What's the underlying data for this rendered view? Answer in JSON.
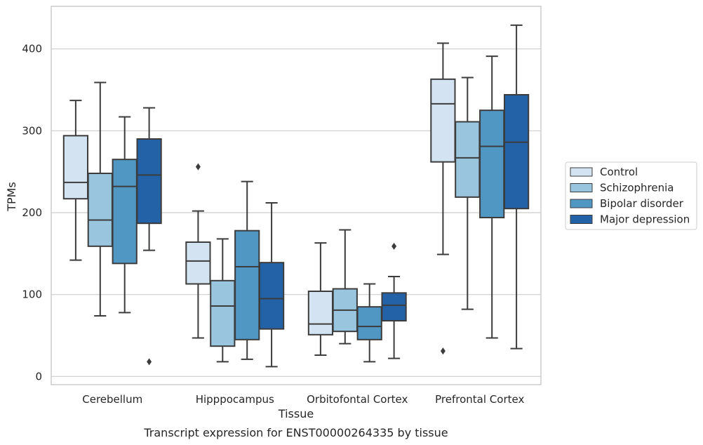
{
  "chart_data": {
    "type": "box",
    "xlabel": "Tissue",
    "ylabel": "TPMs",
    "caption": "Transcript expression for ENST00000264335 by tissue",
    "categories": [
      "Cerebellum",
      "Hipppocampus",
      "Orbitofontal Cortex",
      "Prefrontal Cortex"
    ],
    "ylim": [
      -10,
      452
    ],
    "yticks": [
      0,
      100,
      200,
      300,
      400
    ],
    "grid": true,
    "legend_placement": "right",
    "series": [
      {
        "name": "Control",
        "color": "#d3e3f2",
        "boxes": [
          {
            "whisker_low": 142,
            "q1": 217,
            "median": 237,
            "q3": 294,
            "whisker_high": 337,
            "outliers": []
          },
          {
            "whisker_low": 47,
            "q1": 113,
            "median": 141,
            "q3": 164,
            "whisker_high": 202,
            "outliers": [
              256
            ]
          },
          {
            "whisker_low": 26,
            "q1": 51,
            "median": 64,
            "q3": 104,
            "whisker_high": 163,
            "outliers": []
          },
          {
            "whisker_low": 149,
            "q1": 262,
            "median": 333,
            "q3": 363,
            "whisker_high": 407,
            "outliers": [
              31
            ]
          }
        ]
      },
      {
        "name": "Schizophrenia",
        "color": "#9ac5de",
        "boxes": [
          {
            "whisker_low": 74,
            "q1": 159,
            "median": 191,
            "q3": 248,
            "whisker_high": 359,
            "outliers": []
          },
          {
            "whisker_low": 18,
            "q1": 37,
            "median": 86,
            "q3": 117,
            "whisker_high": 168,
            "outliers": []
          },
          {
            "whisker_low": 40,
            "q1": 55,
            "median": 81,
            "q3": 107,
            "whisker_high": 179,
            "outliers": []
          },
          {
            "whisker_low": 82,
            "q1": 219,
            "median": 267,
            "q3": 311,
            "whisker_high": 365,
            "outliers": []
          }
        ]
      },
      {
        "name": "Bipolar disorder",
        "color": "#5097c4",
        "boxes": [
          {
            "whisker_low": 78,
            "q1": 138,
            "median": 232,
            "q3": 265,
            "whisker_high": 317,
            "outliers": []
          },
          {
            "whisker_low": 21,
            "q1": 45,
            "median": 134,
            "q3": 178,
            "whisker_high": 238,
            "outliers": []
          },
          {
            "whisker_low": 18,
            "q1": 45,
            "median": 61,
            "q3": 85,
            "whisker_high": 113,
            "outliers": []
          },
          {
            "whisker_low": 47,
            "q1": 194,
            "median": 281,
            "q3": 325,
            "whisker_high": 391,
            "outliers": []
          }
        ]
      },
      {
        "name": "Major depression",
        "color": "#2462a7",
        "boxes": [
          {
            "whisker_low": 154,
            "q1": 187,
            "median": 246,
            "q3": 290,
            "whisker_high": 328,
            "outliers": [
              18
            ]
          },
          {
            "whisker_low": 12,
            "q1": 58,
            "median": 95,
            "q3": 139,
            "whisker_high": 212,
            "outliers": []
          },
          {
            "whisker_low": 22,
            "q1": 68,
            "median": 87,
            "q3": 102,
            "whisker_high": 122,
            "outliers": [
              159
            ]
          },
          {
            "whisker_low": 34,
            "q1": 205,
            "median": 286,
            "q3": 344,
            "whisker_high": 429,
            "outliers": []
          }
        ]
      }
    ]
  }
}
